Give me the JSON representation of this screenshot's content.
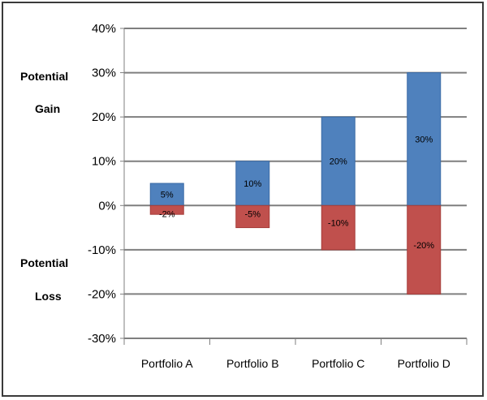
{
  "chart_data": {
    "type": "bar",
    "title": "",
    "xlabel": "",
    "ylabel": "",
    "categories": [
      "Portfolio A",
      "Portfolio B",
      "Portfolio C",
      "Portfolio D"
    ],
    "series": [
      {
        "name": "",
        "values": [
          5,
          10,
          20,
          30
        ],
        "labels": [
          "5%",
          "10%",
          "20%",
          "30%"
        ],
        "color": "#4f81bd"
      },
      {
        "name": "",
        "values": [
          -2,
          -5,
          -10,
          -20
        ],
        "labels": [
          "-2%",
          "-5%",
          "-10%",
          "-20%"
        ],
        "color": "#c0504d"
      }
    ],
    "ylim": [
      -30,
      40
    ],
    "yticks": [
      40,
      30,
      20,
      10,
      0,
      -10,
      -20,
      -30
    ],
    "ytick_labels": [
      "40%",
      "30%",
      "20%",
      "10%",
      "0%",
      "-10%",
      "-20%",
      "-30%"
    ],
    "grid": true,
    "legend": "none",
    "side_labels": {
      "gain": [
        "Potential",
        "Gain"
      ],
      "loss": [
        "Potential",
        "Loss"
      ]
    }
  }
}
